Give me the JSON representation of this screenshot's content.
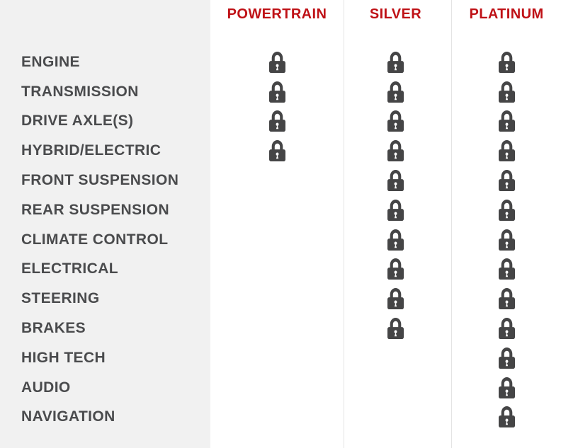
{
  "colors": {
    "plan_header_text": "#bf1116",
    "row_label_text": "#4a4b4d",
    "lock_icon": "#454546",
    "label_column_bg": "#f1f1f1",
    "column_divider": "#e3e3e3",
    "plan_column_bg": "#ffffff"
  },
  "table": {
    "rows": [
      "ENGINE",
      "TRANSMISSION",
      "DRIVE AXLE(S)",
      "HYBRID/ELECTRIC",
      "FRONT SUSPENSION",
      "REAR SUSPENSION",
      "CLIMATE CONTROL",
      "ELECTRICAL",
      "STEERING",
      "BRAKES",
      "HIGH TECH",
      "AUDIO",
      "NAVIGATION"
    ],
    "plans": [
      {
        "label": "POWERTRAIN",
        "covered": [
          true,
          true,
          true,
          true,
          false,
          false,
          false,
          false,
          false,
          false,
          false,
          false,
          false
        ]
      },
      {
        "label": "SILVER",
        "covered": [
          true,
          true,
          true,
          true,
          true,
          true,
          true,
          true,
          true,
          true,
          false,
          false,
          false
        ]
      },
      {
        "label": "PLATINUM",
        "covered": [
          true,
          true,
          true,
          true,
          true,
          true,
          true,
          true,
          true,
          true,
          true,
          true,
          true
        ]
      }
    ],
    "covered_icon": "lock-icon"
  }
}
